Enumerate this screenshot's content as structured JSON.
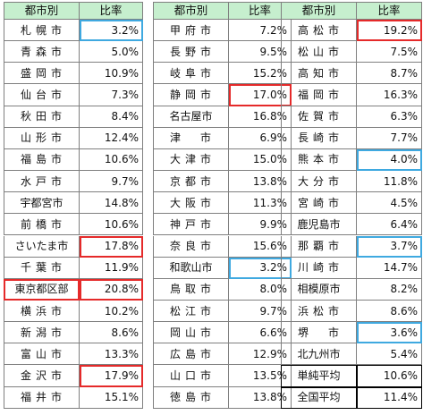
{
  "header": {
    "city_label": "都市別",
    "ratio_label": "比率"
  },
  "colors": {
    "header_bg": "#c6efce",
    "highlight_high": "#e52a2a",
    "highlight_low": "#3fa9e0"
  },
  "columns": [
    {
      "rows": [
        {
          "city": "札幌市",
          "ratio": "3.2%",
          "mark": "low"
        },
        {
          "city": "青森市",
          "ratio": "5.0%",
          "mark": ""
        },
        {
          "city": "盛岡市",
          "ratio": "10.9%",
          "mark": ""
        },
        {
          "city": "仙台市",
          "ratio": "7.3%",
          "mark": ""
        },
        {
          "city": "秋田市",
          "ratio": "8.4%",
          "mark": ""
        },
        {
          "city": "山形市",
          "ratio": "12.4%",
          "mark": ""
        },
        {
          "city": "福島市",
          "ratio": "10.6%",
          "mark": ""
        },
        {
          "city": "水戸市",
          "ratio": "9.7%",
          "mark": ""
        },
        {
          "city": "宇都宮市",
          "ratio": "14.8%",
          "mark": ""
        },
        {
          "city": "前橋市",
          "ratio": "10.6%",
          "mark": ""
        },
        {
          "city": "さいたま市",
          "ratio": "17.8%",
          "mark": "high"
        },
        {
          "city": "千葉市",
          "ratio": "11.9%",
          "mark": ""
        },
        {
          "city": "東京都区部",
          "ratio": "20.8%",
          "mark": "high",
          "cityMark": "high"
        },
        {
          "city": "横浜市",
          "ratio": "10.2%",
          "mark": ""
        },
        {
          "city": "新潟市",
          "ratio": "8.6%",
          "mark": ""
        },
        {
          "city": "富山市",
          "ratio": "13.3%",
          "mark": ""
        },
        {
          "city": "金沢市",
          "ratio": "17.9%",
          "mark": "high"
        },
        {
          "city": "福井市",
          "ratio": "15.1%",
          "mark": ""
        }
      ]
    },
    {
      "rows": [
        {
          "city": "甲府市",
          "ratio": "7.2%",
          "mark": ""
        },
        {
          "city": "長野市",
          "ratio": "9.5%",
          "mark": ""
        },
        {
          "city": "岐阜市",
          "ratio": "15.2%",
          "mark": ""
        },
        {
          "city": "静岡市",
          "ratio": "17.0%",
          "mark": "high"
        },
        {
          "city": "名古屋市",
          "ratio": "16.8%",
          "mark": ""
        },
        {
          "city": "津　市",
          "ratio": "6.9%",
          "mark": ""
        },
        {
          "city": "大津市",
          "ratio": "15.0%",
          "mark": ""
        },
        {
          "city": "京都市",
          "ratio": "13.8%",
          "mark": ""
        },
        {
          "city": "大阪市",
          "ratio": "11.3%",
          "mark": ""
        },
        {
          "city": "神戸市",
          "ratio": "9.9%",
          "mark": ""
        },
        {
          "city": "奈良市",
          "ratio": "15.6%",
          "mark": ""
        },
        {
          "city": "和歌山市",
          "ratio": "3.2%",
          "mark": "low"
        },
        {
          "city": "鳥取市",
          "ratio": "8.0%",
          "mark": ""
        },
        {
          "city": "松江市",
          "ratio": "9.7%",
          "mark": ""
        },
        {
          "city": "岡山市",
          "ratio": "6.6%",
          "mark": ""
        },
        {
          "city": "広島市",
          "ratio": "12.9%",
          "mark": ""
        },
        {
          "city": "山口市",
          "ratio": "13.5%",
          "mark": ""
        },
        {
          "city": "徳島市",
          "ratio": "13.8%",
          "mark": ""
        }
      ]
    },
    {
      "rows": [
        {
          "city": "高松市",
          "ratio": "19.2%",
          "mark": "high"
        },
        {
          "city": "松山市",
          "ratio": "7.5%",
          "mark": ""
        },
        {
          "city": "高知市",
          "ratio": "8.7%",
          "mark": ""
        },
        {
          "city": "福岡市",
          "ratio": "16.3%",
          "mark": ""
        },
        {
          "city": "佐賀市",
          "ratio": "6.3%",
          "mark": ""
        },
        {
          "city": "長崎市",
          "ratio": "7.7%",
          "mark": ""
        },
        {
          "city": "熊本市",
          "ratio": "4.0%",
          "mark": "low"
        },
        {
          "city": "大分市",
          "ratio": "11.8%",
          "mark": ""
        },
        {
          "city": "宮崎市",
          "ratio": "4.5%",
          "mark": ""
        },
        {
          "city": "鹿児島市",
          "ratio": "6.4%",
          "mark": ""
        },
        {
          "city": "那覇市",
          "ratio": "3.7%",
          "mark": "low"
        },
        {
          "city": "川崎市",
          "ratio": "14.7%",
          "mark": ""
        },
        {
          "city": "相模原市",
          "ratio": "8.2%",
          "mark": ""
        },
        {
          "city": "浜松市",
          "ratio": "8.6%",
          "mark": ""
        },
        {
          "city": "堺　市",
          "ratio": "3.6%",
          "mark": "low"
        },
        {
          "city": "北九州市",
          "ratio": "5.4%",
          "mark": ""
        },
        {
          "city": "単純平均",
          "ratio": "10.6%",
          "mark": "box",
          "cityMark": "box"
        },
        {
          "city": "全国平均",
          "ratio": "11.4%",
          "mark": "box",
          "cityMark": "box"
        }
      ]
    }
  ]
}
